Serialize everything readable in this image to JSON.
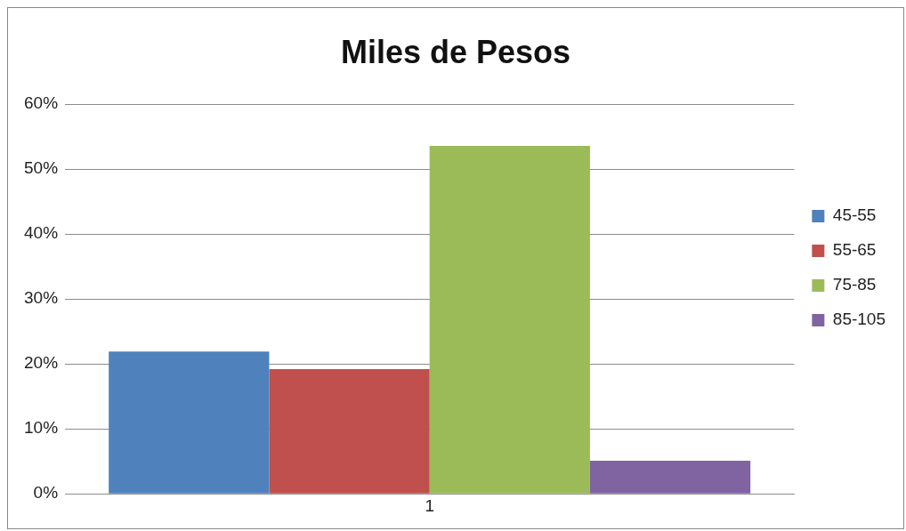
{
  "chart_data": {
    "type": "bar",
    "title": "Miles de Pesos",
    "categories": [
      "1"
    ],
    "series": [
      {
        "name": "45-55",
        "color": "#4f81bd",
        "values": [
          21.9
        ]
      },
      {
        "name": "55-65",
        "color": "#c0504d",
        "values": [
          19.2
        ]
      },
      {
        "name": "75-85",
        "color": "#9bbb59",
        "values": [
          53.6
        ]
      },
      {
        "name": "85-105",
        "color": "#8064a2",
        "values": [
          5.1
        ]
      }
    ],
    "ylim": [
      0,
      60
    ],
    "yticks": [
      {
        "value": 0,
        "label": "0%"
      },
      {
        "value": 10,
        "label": "10%"
      },
      {
        "value": 20,
        "label": "20%"
      },
      {
        "value": 30,
        "label": "30%"
      },
      {
        "value": 40,
        "label": "40%"
      },
      {
        "value": 50,
        "label": "50%"
      },
      {
        "value": 60,
        "label": "60%"
      }
    ],
    "grid": "y",
    "legend": "right"
  }
}
